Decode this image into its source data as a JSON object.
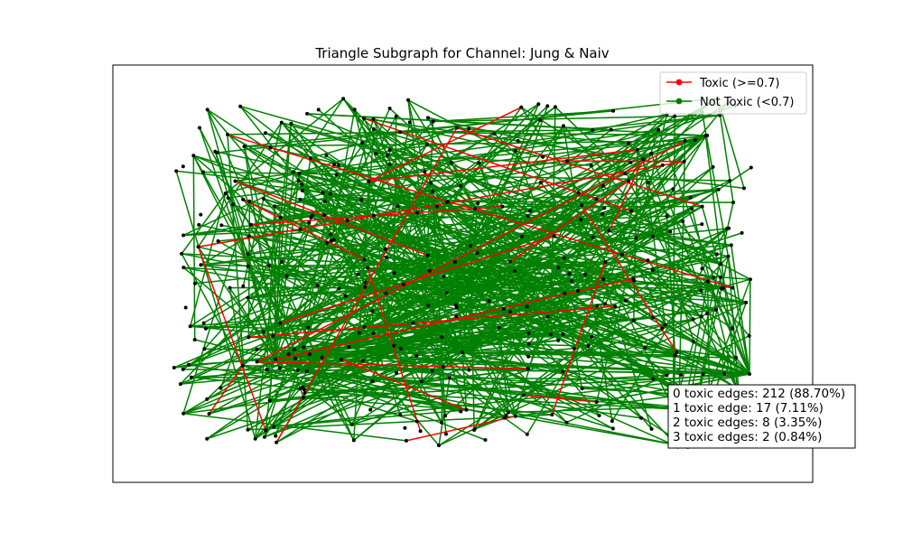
{
  "chart_data": {
    "type": "network",
    "title": "Triangle Subgraph for Channel: Jung & Naiv",
    "legend": {
      "placement": "top-right",
      "entries": [
        {
          "label": "Toxic (>=0.7)",
          "color": "#ff0000"
        },
        {
          "label": "Not Toxic (<0.7)",
          "color": "#008000"
        }
      ]
    },
    "node_color": "#000000",
    "stats_box": {
      "placement": "bottom-right",
      "lines": [
        "0 toxic edges: 212 (88.70%)",
        "1 toxic edge: 17 (7.11%)",
        "2 toxic edges: 8 (3.35%)",
        "3 toxic edges: 2 (0.84%)"
      ]
    },
    "axes_visible": false
  }
}
